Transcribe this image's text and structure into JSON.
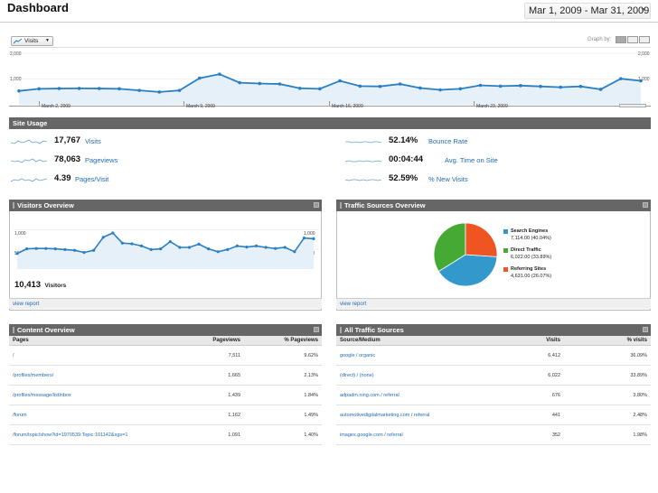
{
  "header": {
    "title": "Dashboard",
    "date_range": "Mar 1, 2009 - Mar 31, 2009"
  },
  "graph_controls": {
    "metric_select": "Visits",
    "graph_by_label": "Graph by:"
  },
  "main_chart": {
    "y_left_top": "2,000",
    "y_left_mid": "1,000",
    "y_right_top": "2,000",
    "y_right_mid": "1,000",
    "x_labels": [
      "March 2, 2009",
      "March 9, 2009",
      "March 16, 2009",
      "March 23, 2009"
    ],
    "color": "#2a7fc2"
  },
  "chart_data": {
    "type": "area",
    "series": [
      {
        "values": [
          520,
          600,
          610,
          615,
          610,
          600,
          540,
          480,
          540,
          1000,
          1150,
          830,
          800,
          780,
          620,
          600,
          900,
          700,
          690,
          780,
          630,
          560,
          600,
          730,
          700,
          720,
          690,
          660,
          690,
          580,
          980,
          900
        ]
      }
    ],
    "ylim": [
      0,
      2000
    ]
  },
  "site_usage": {
    "title": "Site Usage",
    "metrics": [
      {
        "value": "17,767",
        "label": "Visits"
      },
      {
        "value": "78,063",
        "label": "Pageviews"
      },
      {
        "value": "4.39",
        "label": "Pages/Visit"
      },
      {
        "value": "52.14%",
        "label": "Bounce Rate"
      },
      {
        "value": "00:04:44",
        "label": "Avg. Time on Site"
      },
      {
        "value": "52.59%",
        "label": "% New Visits"
      }
    ]
  },
  "visitors_overview": {
    "title": "Visitors Overview",
    "y_top": "1,000",
    "y_mid": "500",
    "y_top_r": "1,000",
    "y_mid_r": "500",
    "total": "10,413",
    "total_label": "Visitors",
    "link": "view report",
    "values": [
      430,
      560,
      570,
      570,
      560,
      540,
      520,
      460,
      520,
      880,
      1000,
      720,
      700,
      640,
      540,
      560,
      760,
      600,
      600,
      690,
      560,
      480,
      540,
      640,
      610,
      640,
      600,
      570,
      600,
      480,
      860,
      840
    ]
  },
  "traffic_sources": {
    "title": "Traffic Sources Overview",
    "link": "view report",
    "slices": [
      {
        "label": "Search Engines",
        "value": "7,114.00 (40.04%)",
        "pct": 40.04,
        "color": "#3399cc"
      },
      {
        "label": "Direct Traffic",
        "value": "6,022.00 (33.89%)",
        "pct": 33.89,
        "color": "#44aa33"
      },
      {
        "label": "Referring Sites",
        "value": "4,631.00 (26.07%)",
        "pct": 26.07,
        "color": "#ee5522"
      }
    ]
  },
  "content_overview": {
    "title": "Content Overview",
    "columns": [
      "Pages",
      "Pageviews",
      "% Pageviews"
    ],
    "rows": [
      [
        "/",
        "7,511",
        "9.62%"
      ],
      [
        "/profiles/members/",
        "1,665",
        "2.13%"
      ],
      [
        "/profiles/message/listInbox",
        "1,439",
        "1.84%"
      ],
      [
        "/forum",
        "1,162",
        "1.49%"
      ],
      [
        "/forum/topic/show?id=1970539:Topic:101142&xgs=1",
        "1,091",
        "1.40%"
      ]
    ]
  },
  "all_traffic_sources": {
    "title": "All Traffic Sources",
    "columns": [
      "Source/Medium",
      "Visits",
      "% visits"
    ],
    "rows": [
      [
        "google / organic",
        "6,412",
        "36.09%"
      ],
      [
        "(direct) / (none)",
        "6,022",
        "33.89%"
      ],
      [
        "adpadm.ning.com / referral",
        "676",
        "3.80%"
      ],
      [
        "automotivedigitalmarketing.com / referral",
        "441",
        "2.48%"
      ],
      [
        "images.google.com / referral",
        "352",
        "1.98%"
      ]
    ]
  }
}
